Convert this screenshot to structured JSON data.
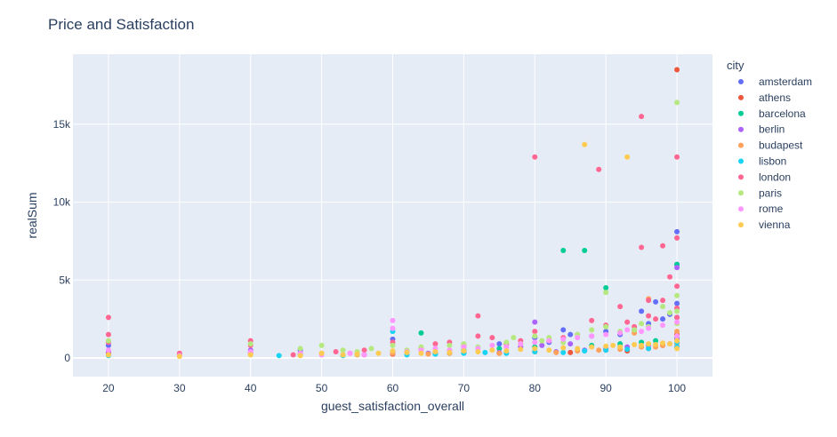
{
  "chart_data": {
    "type": "scatter",
    "title": "Price and Satisfaction",
    "xlabel": "guest_satisfaction_overall",
    "ylabel": "realSum",
    "xlim": [
      15,
      105
    ],
    "ylim": [
      -1200,
      19500
    ],
    "x_ticks": [
      20,
      30,
      40,
      50,
      60,
      70,
      80,
      90,
      100
    ],
    "x_tick_labels": [
      "20",
      "30",
      "40",
      "50",
      "60",
      "70",
      "80",
      "90",
      "100"
    ],
    "y_ticks": [
      0,
      5000,
      10000,
      15000
    ],
    "y_tick_labels": [
      "0",
      "5k",
      "10k",
      "15k"
    ],
    "grid": true,
    "legend": {
      "title": "city",
      "position": "right"
    },
    "series": [
      {
        "name": "amsterdam",
        "color": "#636efa",
        "points": [
          [
            20,
            800
          ],
          [
            47,
            500
          ],
          [
            60,
            1200
          ],
          [
            70,
            700
          ],
          [
            75,
            900
          ],
          [
            80,
            1300
          ],
          [
            82,
            1000
          ],
          [
            84,
            1800
          ],
          [
            85,
            1500
          ],
          [
            88,
            1400
          ],
          [
            90,
            1700
          ],
          [
            92,
            1500
          ],
          [
            94,
            1800
          ],
          [
            95,
            3000
          ],
          [
            96,
            2200
          ],
          [
            97,
            3600
          ],
          [
            98,
            2500
          ],
          [
            99,
            2800
          ],
          [
            100,
            8100
          ],
          [
            100,
            6000
          ],
          [
            100,
            3500
          ],
          [
            100,
            2600
          ]
        ]
      },
      {
        "name": "athens",
        "color": "#ef553b",
        "points": [
          [
            20,
            300
          ],
          [
            30,
            200
          ],
          [
            40,
            300
          ],
          [
            56,
            200
          ],
          [
            60,
            250
          ],
          [
            66,
            300
          ],
          [
            70,
            350
          ],
          [
            75,
            300
          ],
          [
            80,
            400
          ],
          [
            85,
            350
          ],
          [
            90,
            500
          ],
          [
            93,
            450
          ],
          [
            96,
            600
          ],
          [
            98,
            800
          ],
          [
            100,
            18500
          ],
          [
            100,
            1500
          ],
          [
            100,
            700
          ]
        ]
      },
      {
        "name": "barcelona",
        "color": "#00cc96",
        "points": [
          [
            60,
            400
          ],
          [
            64,
            1600
          ],
          [
            68,
            300
          ],
          [
            70,
            500
          ],
          [
            75,
            600
          ],
          [
            80,
            700
          ],
          [
            84,
            6900
          ],
          [
            87,
            6900
          ],
          [
            88,
            800
          ],
          [
            90,
            4500
          ],
          [
            92,
            900
          ],
          [
            95,
            1000
          ],
          [
            97,
            1100
          ],
          [
            100,
            6000
          ],
          [
            100,
            1300
          ]
        ]
      },
      {
        "name": "berlin",
        "color": "#ab63fa",
        "points": [
          [
            20,
            400
          ],
          [
            40,
            500
          ],
          [
            47,
            300
          ],
          [
            53,
            200
          ],
          [
            60,
            350
          ],
          [
            65,
            300
          ],
          [
            70,
            450
          ],
          [
            75,
            350
          ],
          [
            78,
            700
          ],
          [
            80,
            2300
          ],
          [
            81,
            800
          ],
          [
            83,
            400
          ],
          [
            85,
            900
          ],
          [
            87,
            500
          ],
          [
            90,
            600
          ],
          [
            93,
            700
          ],
          [
            96,
            800
          ],
          [
            99,
            900
          ],
          [
            100,
            5800
          ],
          [
            100,
            1200
          ]
        ]
      },
      {
        "name": "budapest",
        "color": "#ffa15a",
        "points": [
          [
            20,
            200
          ],
          [
            40,
            300
          ],
          [
            47,
            250
          ],
          [
            50,
            300
          ],
          [
            55,
            200
          ],
          [
            60,
            300
          ],
          [
            65,
            250
          ],
          [
            68,
            300
          ],
          [
            70,
            350
          ],
          [
            75,
            300
          ],
          [
            80,
            400
          ],
          [
            83,
            350
          ],
          [
            86,
            450
          ],
          [
            89,
            500
          ],
          [
            92,
            550
          ],
          [
            94,
            1600
          ],
          [
            95,
            700
          ],
          [
            96,
            3800
          ],
          [
            97,
            700
          ],
          [
            98,
            800
          ],
          [
            100,
            1700
          ],
          [
            100,
            900
          ]
        ]
      },
      {
        "name": "lisbon",
        "color": "#19d3f3",
        "points": [
          [
            20,
            150
          ],
          [
            44,
            150
          ],
          [
            47,
            200
          ],
          [
            53,
            150
          ],
          [
            55,
            250
          ],
          [
            60,
            1700
          ],
          [
            62,
            200
          ],
          [
            66,
            250
          ],
          [
            70,
            300
          ],
          [
            73,
            350
          ],
          [
            76,
            300
          ],
          [
            80,
            400
          ],
          [
            84,
            350
          ],
          [
            87,
            450
          ],
          [
            90,
            500
          ],
          [
            93,
            550
          ],
          [
            96,
            600
          ],
          [
            100,
            700
          ],
          [
            100,
            1000
          ]
        ]
      },
      {
        "name": "london",
        "color": "#ff6692",
        "points": [
          [
            20,
            2600
          ],
          [
            20,
            1500
          ],
          [
            20,
            1000
          ],
          [
            30,
            300
          ],
          [
            40,
            1100
          ],
          [
            40,
            800
          ],
          [
            46,
            200
          ],
          [
            52,
            400
          ],
          [
            54,
            300
          ],
          [
            56,
            500
          ],
          [
            60,
            1000
          ],
          [
            62,
            400
          ],
          [
            64,
            600
          ],
          [
            66,
            900
          ],
          [
            68,
            1000
          ],
          [
            70,
            800
          ],
          [
            72,
            2700
          ],
          [
            72,
            1400
          ],
          [
            74,
            1300
          ],
          [
            76,
            900
          ],
          [
            78,
            1100
          ],
          [
            80,
            12900
          ],
          [
            80,
            1700
          ],
          [
            82,
            1100
          ],
          [
            84,
            1300
          ],
          [
            86,
            1500
          ],
          [
            88,
            2400
          ],
          [
            89,
            12100
          ],
          [
            90,
            2100
          ],
          [
            92,
            3300
          ],
          [
            93,
            2300
          ],
          [
            94,
            2000
          ],
          [
            95,
            15500
          ],
          [
            95,
            7100
          ],
          [
            96,
            3700
          ],
          [
            96,
            2700
          ],
          [
            97,
            2500
          ],
          [
            98,
            7200
          ],
          [
            98,
            3700
          ],
          [
            99,
            5200
          ],
          [
            100,
            12900
          ],
          [
            100,
            7700
          ],
          [
            100,
            4600
          ],
          [
            100,
            3200
          ],
          [
            100,
            2600
          ]
        ]
      },
      {
        "name": "paris",
        "color": "#b6e880",
        "points": [
          [
            20,
            1100
          ],
          [
            40,
            900
          ],
          [
            47,
            600
          ],
          [
            50,
            800
          ],
          [
            53,
            500
          ],
          [
            55,
            400
          ],
          [
            57,
            600
          ],
          [
            60,
            800
          ],
          [
            62,
            500
          ],
          [
            64,
            700
          ],
          [
            66,
            600
          ],
          [
            68,
            800
          ],
          [
            70,
            900
          ],
          [
            72,
            700
          ],
          [
            74,
            800
          ],
          [
            76,
            1000
          ],
          [
            77,
            1300
          ],
          [
            78,
            900
          ],
          [
            80,
            1400
          ],
          [
            81,
            1100
          ],
          [
            82,
            1300
          ],
          [
            84,
            1000
          ],
          [
            86,
            1500
          ],
          [
            88,
            1800
          ],
          [
            90,
            4200
          ],
          [
            90,
            2000
          ],
          [
            92,
            1700
          ],
          [
            94,
            1800
          ],
          [
            95,
            2200
          ],
          [
            96,
            2000
          ],
          [
            98,
            3300
          ],
          [
            99,
            2900
          ],
          [
            100,
            16400
          ],
          [
            100,
            4000
          ],
          [
            100,
            3000
          ],
          [
            100,
            2200
          ]
        ]
      },
      {
        "name": "rome",
        "color": "#ff97ff",
        "points": [
          [
            20,
            500
          ],
          [
            30,
            150
          ],
          [
            40,
            400
          ],
          [
            47,
            300
          ],
          [
            50,
            200
          ],
          [
            54,
            300
          ],
          [
            56,
            200
          ],
          [
            60,
            2400
          ],
          [
            60,
            1900
          ],
          [
            62,
            400
          ],
          [
            64,
            500
          ],
          [
            66,
            600
          ],
          [
            68,
            500
          ],
          [
            70,
            700
          ],
          [
            72,
            600
          ],
          [
            74,
            800
          ],
          [
            76,
            700
          ],
          [
            78,
            900
          ],
          [
            80,
            1000
          ],
          [
            82,
            1100
          ],
          [
            84,
            1200
          ],
          [
            86,
            1300
          ],
          [
            88,
            1400
          ],
          [
            90,
            1500
          ],
          [
            92,
            1600
          ],
          [
            93,
            1800
          ],
          [
            95,
            1700
          ],
          [
            96,
            1900
          ],
          [
            98,
            2100
          ],
          [
            100,
            2300
          ],
          [
            100,
            1400
          ]
        ]
      },
      {
        "name": "vienna",
        "color": "#fecb52",
        "points": [
          [
            20,
            200
          ],
          [
            30,
            100
          ],
          [
            40,
            200
          ],
          [
            47,
            150
          ],
          [
            50,
            300
          ],
          [
            53,
            200
          ],
          [
            55,
            250
          ],
          [
            58,
            300
          ],
          [
            60,
            450
          ],
          [
            62,
            350
          ],
          [
            64,
            300
          ],
          [
            66,
            400
          ],
          [
            68,
            350
          ],
          [
            70,
            450
          ],
          [
            72,
            400
          ],
          [
            74,
            500
          ],
          [
            76,
            450
          ],
          [
            78,
            550
          ],
          [
            80,
            600
          ],
          [
            82,
            500
          ],
          [
            84,
            650
          ],
          [
            86,
            600
          ],
          [
            87,
            13700
          ],
          [
            88,
            700
          ],
          [
            90,
            750
          ],
          [
            91,
            800
          ],
          [
            92,
            700
          ],
          [
            93,
            12900
          ],
          [
            94,
            850
          ],
          [
            95,
            800
          ],
          [
            96,
            900
          ],
          [
            97,
            850
          ],
          [
            98,
            950
          ],
          [
            99,
            900
          ],
          [
            100,
            1100
          ],
          [
            100,
            600
          ]
        ]
      }
    ]
  }
}
